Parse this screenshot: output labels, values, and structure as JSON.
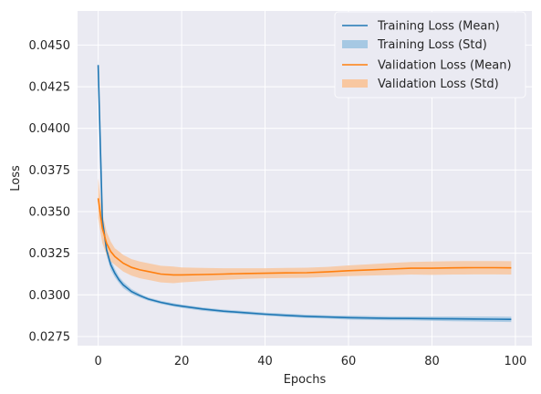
{
  "chart_data": {
    "type": "line",
    "xlabel": "Epochs",
    "ylabel": "Loss",
    "xlim": [
      -4.95,
      103.95
    ],
    "ylim": [
      0.02695,
      0.04705
    ],
    "xticks": [
      0,
      20,
      40,
      60,
      80,
      100
    ],
    "xtick_labels": [
      "0",
      "20",
      "40",
      "60",
      "80",
      "100"
    ],
    "yticks": [
      0.0275,
      0.03,
      0.0325,
      0.035,
      0.0375,
      0.04,
      0.0425,
      0.045
    ],
    "ytick_labels": [
      "0.0275",
      "0.0300",
      "0.0325",
      "0.0350",
      "0.0375",
      "0.0400",
      "0.0425",
      "0.0450"
    ],
    "grid": true,
    "legend_position": "upper-right",
    "legend": [
      "Training Loss (Mean)",
      "Training Loss (Std)",
      "Validation Loss (Mean)",
      "Validation Loss (Std)"
    ],
    "x": [
      0,
      1,
      2,
      3,
      4,
      5,
      6,
      8,
      10,
      12,
      15,
      18,
      20,
      25,
      30,
      35,
      40,
      45,
      50,
      55,
      60,
      65,
      70,
      75,
      80,
      85,
      90,
      95,
      99
    ],
    "series": [
      {
        "name": "Training Loss (Mean)",
        "color": "#1f77b4",
        "band_color": "#a6c8e3",
        "values": [
          0.0438,
          0.0345,
          0.0327,
          0.0318,
          0.0313,
          0.0309,
          0.0306,
          0.0302,
          0.02995,
          0.02975,
          0.02955,
          0.0294,
          0.02932,
          0.02915,
          0.02902,
          0.02893,
          0.02884,
          0.02877,
          0.02871,
          0.02867,
          0.02863,
          0.02861,
          0.02859,
          0.02858,
          0.02857,
          0.02856,
          0.02855,
          0.02854,
          0.02853
        ],
        "std": [
          0.0004,
          0.0004,
          0.00035,
          0.0003,
          0.00025,
          0.0002,
          0.0002,
          0.00015,
          0.00012,
          0.0001,
          0.0001,
          0.0001,
          0.0001,
          0.0001,
          0.0001,
          0.0001,
          0.0001,
          0.0001,
          0.0001,
          0.0001,
          0.00012,
          0.00012,
          0.00012,
          0.00012,
          0.00013,
          0.00014,
          0.00015,
          0.00016,
          0.00016
        ]
      },
      {
        "name": "Validation Loss (Mean)",
        "color": "#ff7f0e",
        "band_color": "#f8c7a0",
        "values": [
          0.0358,
          0.034,
          0.0331,
          0.0326,
          0.0323,
          0.0321,
          0.0319,
          0.03165,
          0.0315,
          0.0314,
          0.03125,
          0.0312,
          0.0312,
          0.03122,
          0.03125,
          0.03128,
          0.0313,
          0.03132,
          0.03133,
          0.03138,
          0.03145,
          0.0315,
          0.03155,
          0.0316,
          0.0316,
          0.03162,
          0.03163,
          0.03163,
          0.03162
        ],
        "std": [
          0.0012,
          0.0009,
          0.0007,
          0.0006,
          0.0005,
          0.0005,
          0.0005,
          0.0005,
          0.0005,
          0.0005,
          0.0005,
          0.0005,
          0.00045,
          0.0004,
          0.00035,
          0.00032,
          0.0003,
          0.0003,
          0.0003,
          0.0003,
          0.00032,
          0.00034,
          0.00036,
          0.00038,
          0.0004,
          0.0004,
          0.0004,
          0.0004,
          0.0004
        ]
      }
    ]
  }
}
